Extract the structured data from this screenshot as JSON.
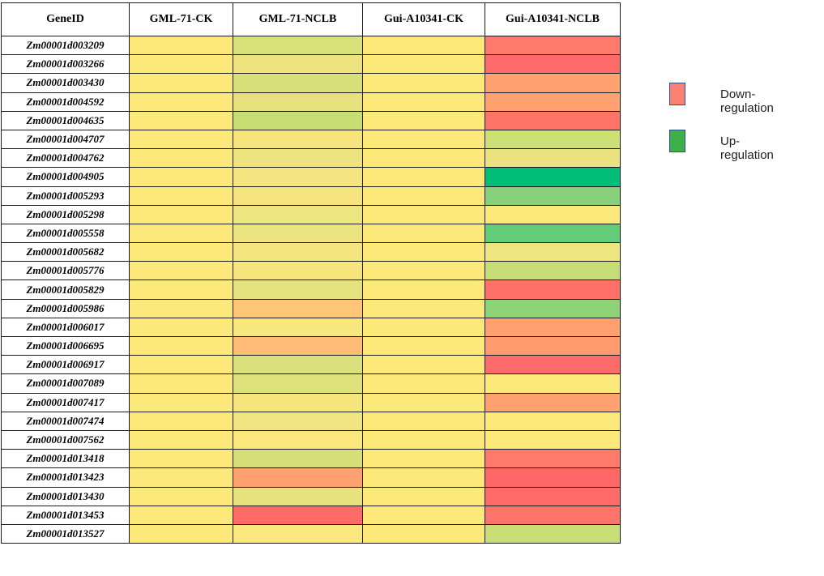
{
  "chart_data": {
    "type": "heatmap",
    "columns": [
      "GeneID",
      "GML-71-CK",
      "GML-71-NCLB",
      "Gui-A10341-CK",
      "Gui-A10341-NCLB"
    ],
    "rows": [
      {
        "gene": "Zm00001d003209",
        "colors": [
          "#fde87a",
          "#d9e27a",
          "#fde87a",
          "#ff7a6a"
        ]
      },
      {
        "gene": "Zm00001d003266",
        "colors": [
          "#fde87a",
          "#ede480",
          "#fde87a",
          "#ff6b6b"
        ]
      },
      {
        "gene": "Zm00001d003430",
        "colors": [
          "#fde87a",
          "#d8e07c",
          "#fde87a",
          "#ffa270"
        ]
      },
      {
        "gene": "Zm00001d004592",
        "colors": [
          "#fde87a",
          "#e8e27e",
          "#fde87a",
          "#ffa270"
        ]
      },
      {
        "gene": "Zm00001d004635",
        "colors": [
          "#fde87a",
          "#c8dd74",
          "#fde87a",
          "#ff7468"
        ]
      },
      {
        "gene": "Zm00001d004707",
        "colors": [
          "#fde87a",
          "#f6e57d",
          "#fde87a",
          "#cde075"
        ]
      },
      {
        "gene": "Zm00001d004762",
        "colors": [
          "#fde87a",
          "#eee47f",
          "#fde87a",
          "#eae37f"
        ]
      },
      {
        "gene": "Zm00001d004905",
        "colors": [
          "#fde87a",
          "#f3e681",
          "#fde87a",
          "#00be78"
        ]
      },
      {
        "gene": "Zm00001d005293",
        "colors": [
          "#fde87a",
          "#f6e57e",
          "#fde87a",
          "#88d17a"
        ]
      },
      {
        "gene": "Zm00001d005298",
        "colors": [
          "#fde87a",
          "#ede580",
          "#fde87a",
          "#fde87a"
        ]
      },
      {
        "gene": "Zm00001d005558",
        "colors": [
          "#fde87a",
          "#ece480",
          "#fde87a",
          "#62cc7a"
        ]
      },
      {
        "gene": "Zm00001d005682",
        "colors": [
          "#fde87a",
          "#f3e67e",
          "#fde87a",
          "#efe580"
        ]
      },
      {
        "gene": "Zm00001d005776",
        "colors": [
          "#fde87a",
          "#f6e57d",
          "#fde87a",
          "#c6dd76"
        ]
      },
      {
        "gene": "Zm00001d005829",
        "colors": [
          "#fde87a",
          "#e4e27e",
          "#fde87a",
          "#ff7068"
        ]
      },
      {
        "gene": "Zm00001d005986",
        "colors": [
          "#fde87a",
          "#ffc677",
          "#fde87a",
          "#8fd378"
        ]
      },
      {
        "gene": "Zm00001d006017",
        "colors": [
          "#fde87a",
          "#f7e77d",
          "#fde87a",
          "#ffa06e"
        ]
      },
      {
        "gene": "Zm00001d006695",
        "colors": [
          "#fde87a",
          "#ffbc77",
          "#fde87a",
          "#ff9b6d"
        ]
      },
      {
        "gene": "Zm00001d006917",
        "colors": [
          "#fde87a",
          "#d9e07c",
          "#fde87a",
          "#ff6b6b"
        ]
      },
      {
        "gene": "Zm00001d007089",
        "colors": [
          "#fde87a",
          "#dfe17d",
          "#fde87a",
          "#fde87a"
        ]
      },
      {
        "gene": "Zm00001d007417",
        "colors": [
          "#fde87a",
          "#f4e67c",
          "#fde87a",
          "#ffa26f"
        ]
      },
      {
        "gene": "Zm00001d007474",
        "colors": [
          "#fde87a",
          "#f0e582",
          "#fde87a",
          "#fde87a"
        ]
      },
      {
        "gene": "Zm00001d007562",
        "colors": [
          "#fde87a",
          "#fbe87c",
          "#fde87a",
          "#fde87a"
        ]
      },
      {
        "gene": "Zm00001d013418",
        "colors": [
          "#fde87a",
          "#d4df7a",
          "#fde87a",
          "#ff7a6a"
        ]
      },
      {
        "gene": "Zm00001d013423",
        "colors": [
          "#fde87a",
          "#ffa270",
          "#fde87a",
          "#ff6768"
        ]
      },
      {
        "gene": "Zm00001d013430",
        "colors": [
          "#fde87a",
          "#e8e27e",
          "#fde87a",
          "#ff6b68"
        ]
      },
      {
        "gene": "Zm00001d013453",
        "colors": [
          "#fde87a",
          "#ff6c68",
          "#fde87a",
          "#ff7569"
        ]
      },
      {
        "gene": "Zm00001d013527",
        "colors": [
          "#fde87a",
          "#fbe87c",
          "#fde87a",
          "#c9de76"
        ]
      }
    ],
    "legend": {
      "placement": "right",
      "items": [
        {
          "label": "Down-regulation",
          "color": "#fa8072"
        },
        {
          "label": "Up-regulation",
          "color": "#3cb14a"
        }
      ]
    }
  }
}
